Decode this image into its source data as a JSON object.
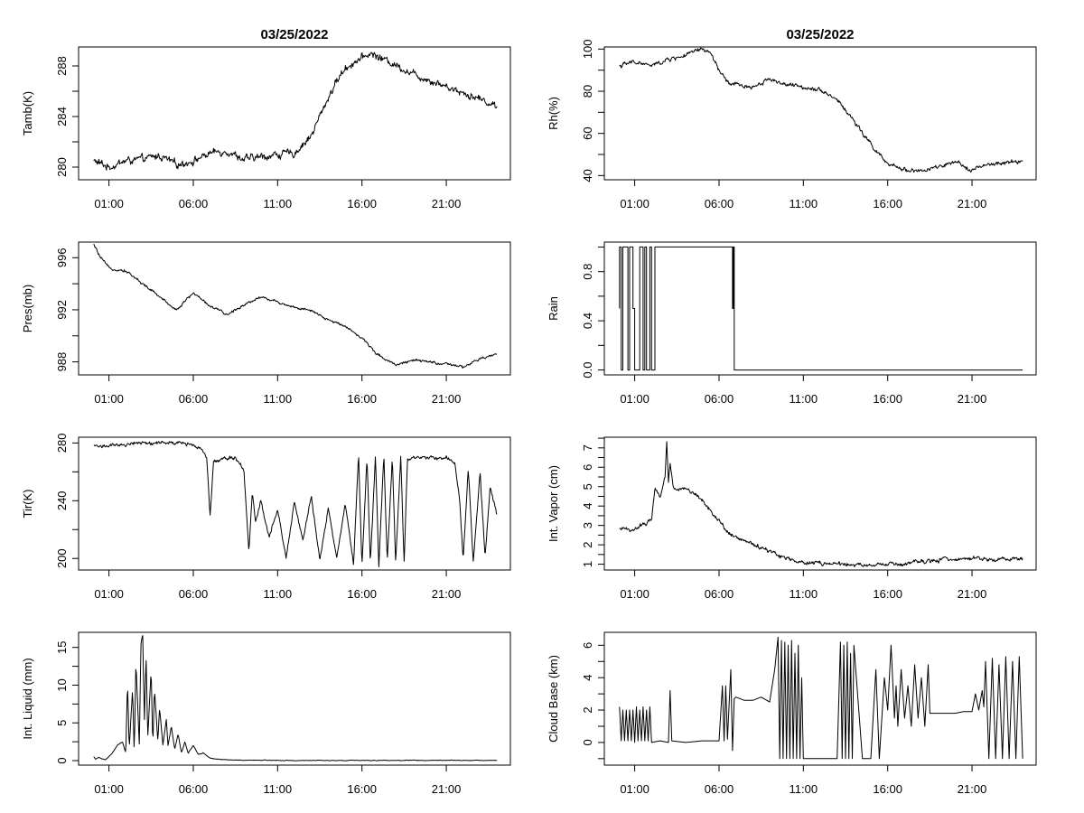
{
  "chart_data": [
    {
      "type": "line",
      "title": "03/25/2022",
      "ylabel": "Tamb(K)",
      "xlim": [
        -0.8,
        24.8
      ],
      "ylim": [
        279,
        289.5
      ],
      "yticks": [
        280,
        284,
        288
      ],
      "xticks": [
        1,
        6,
        11,
        16,
        21
      ],
      "xticklabels": [
        "01:00",
        "06:00",
        "11:00",
        "16:00",
        "21:00"
      ],
      "grid": false,
      "series": [
        {
          "color": "#000000",
          "noise": 0.35,
          "x": [
            0.1,
            1,
            2,
            3,
            4,
            5,
            6,
            7,
            8,
            9,
            10,
            11,
            12,
            13,
            13.5,
            14,
            14.5,
            15,
            15.5,
            16,
            16.5,
            17,
            18,
            19,
            20,
            21,
            22,
            23,
            24
          ],
          "y": [
            280.5,
            280.0,
            280.5,
            280.6,
            280.9,
            280.2,
            280.5,
            281.1,
            281.3,
            280.6,
            280.8,
            281.0,
            281.1,
            282.5,
            284.0,
            285.5,
            286.8,
            287.8,
            288.3,
            288.6,
            289.0,
            288.7,
            288.1,
            287.4,
            286.9,
            286.4,
            285.9,
            285.4,
            284.8
          ]
        }
      ]
    },
    {
      "type": "line",
      "title": "03/25/2022",
      "ylabel": "Rh(%)",
      "xlim": [
        -0.8,
        24.8
      ],
      "ylim": [
        38,
        101
      ],
      "yticks": [
        40,
        60,
        80,
        100
      ],
      "xticks": [
        1,
        6,
        11,
        16,
        21
      ],
      "xticklabels": [
        "01:00",
        "06:00",
        "11:00",
        "16:00",
        "21:00"
      ],
      "grid": false,
      "series": [
        {
          "color": "#000000",
          "noise": 1.2,
          "x": [
            0.1,
            1,
            2,
            3,
            4,
            5,
            5.5,
            6,
            6.5,
            7,
            8,
            9,
            10,
            11,
            12,
            13,
            14,
            14.5,
            15,
            15.5,
            16,
            17,
            18,
            19,
            20,
            21,
            22,
            23,
            24
          ],
          "y": [
            92,
            94,
            92,
            95,
            97,
            100,
            98,
            90,
            84,
            83,
            82,
            86,
            83,
            82,
            81,
            76,
            66,
            60,
            55,
            50,
            45,
            43,
            42,
            44,
            46,
            43,
            45,
            46,
            47
          ]
        }
      ]
    },
    {
      "type": "line",
      "ylabel": "Pres(mb)",
      "xlim": [
        -0.8,
        24.8
      ],
      "ylim": [
        987.0,
        997.2
      ],
      "yticks": [
        988,
        992,
        996
      ],
      "xticks": [
        1,
        6,
        11,
        16,
        21
      ],
      "xticklabels": [
        "01:00",
        "06:00",
        "11:00",
        "16:00",
        "21:00"
      ],
      "grid": false,
      "series": [
        {
          "color": "#000000",
          "noise": 0.12,
          "x": [
            0.1,
            0.5,
            1,
            2,
            3,
            4,
            5,
            6,
            7,
            8,
            9,
            10,
            11,
            12,
            13,
            14,
            15,
            16,
            17,
            18,
            19,
            20,
            21,
            22,
            23,
            24
          ],
          "y": [
            997.0,
            996.0,
            995.2,
            995.0,
            994.0,
            993.0,
            992.0,
            993.3,
            992.3,
            991.6,
            992.4,
            993.0,
            992.6,
            992.2,
            991.9,
            991.2,
            990.8,
            989.8,
            988.5,
            987.8,
            988.1,
            988.0,
            987.8,
            987.6,
            988.2,
            988.6
          ]
        }
      ]
    },
    {
      "type": "step",
      "ylabel": "Rain",
      "xlim": [
        -0.8,
        24.8
      ],
      "ylim": [
        -0.04,
        1.04
      ],
      "yticks": [
        0.0,
        0.4,
        0.8
      ],
      "yticklabels": [
        "0.0",
        "0.4",
        "0.8"
      ],
      "xticks": [
        1,
        6,
        11,
        16,
        21
      ],
      "xticklabels": [
        "01:00",
        "06:00",
        "11:00",
        "16:00",
        "21:00"
      ],
      "grid": false,
      "series": [
        {
          "color": "#000000",
          "x": [
            0.1,
            0.1,
            0.2,
            0.2,
            0.3,
            0.3,
            0.6,
            0.6,
            0.7,
            0.7,
            0.9,
            0.9,
            1.0,
            1.0,
            1.3,
            1.3,
            1.5,
            1.5,
            1.6,
            1.6,
            1.7,
            1.7,
            1.9,
            1.9,
            2.0,
            2.0,
            2.2,
            2.2,
            6.8,
            6.8,
            6.85,
            6.85,
            6.9,
            6.9,
            24.0
          ],
          "y": [
            0.5,
            1,
            1,
            0,
            0,
            1,
            1,
            0,
            0,
            1,
            1,
            0.5,
            0.5,
            0,
            0,
            1,
            1,
            0,
            0,
            1,
            1,
            0,
            0,
            1,
            1,
            0,
            0,
            1,
            1,
            0.5,
            0.5,
            1,
            1,
            0,
            0
          ]
        }
      ]
    },
    {
      "type": "line",
      "ylabel": "Tir(K)",
      "xlim": [
        -0.8,
        24.8
      ],
      "ylim": [
        192,
        284
      ],
      "yticks": [
        200,
        240,
        280
      ],
      "xticks": [
        1,
        6,
        11,
        16,
        21
      ],
      "xticklabels": [
        "01:00",
        "06:00",
        "11:00",
        "16:00",
        "21:00"
      ],
      "grid": false,
      "series": [
        {
          "color": "#000000",
          "noise": 1.5,
          "x": [
            0.1,
            2,
            2.1,
            5,
            6,
            6.5,
            6.8,
            7.0,
            7.2,
            7.5,
            8,
            8.5,
            9,
            9.3,
            9.5,
            9.7,
            10,
            10.5,
            11,
            11.5,
            12,
            12.5,
            13,
            13.5,
            14,
            14.5,
            15,
            15.5,
            15.8,
            16,
            16.3,
            16.5,
            16.8,
            17,
            17.3,
            17.5,
            17.8,
            18,
            18.3,
            18.5,
            18.7,
            19,
            20,
            21,
            21.5,
            21.8,
            22,
            22.3,
            22.6,
            23,
            23.3,
            23.6,
            24
          ],
          "y": [
            278,
            278,
            280,
            280,
            279,
            276,
            270,
            230,
            268,
            268,
            270,
            270,
            262,
            205,
            245,
            225,
            240,
            215,
            235,
            200,
            240,
            212,
            243,
            198,
            235,
            200,
            238,
            196,
            272,
            195,
            270,
            196,
            272,
            195,
            272,
            197,
            270,
            196,
            271,
            197,
            269,
            270,
            270,
            270,
            266,
            240,
            200,
            262,
            198,
            260,
            200,
            250,
            230
          ]
        }
      ]
    },
    {
      "type": "line",
      "ylabel": "Int. Vapor (cm)",
      "xlim": [
        -0.8,
        24.8
      ],
      "ylim": [
        0.7,
        7.55
      ],
      "yticks": [
        1,
        2,
        3,
        4,
        5,
        6,
        7
      ],
      "xticks": [
        1,
        6,
        11,
        16,
        21
      ],
      "xticklabels": [
        "01:00",
        "06:00",
        "11:00",
        "16:00",
        "21:00"
      ],
      "grid": false,
      "series": [
        {
          "color": "#000000",
          "noise": 0.12,
          "x": [
            0.1,
            1,
            2,
            2.2,
            2.5,
            2.8,
            2.9,
            3.0,
            3.1,
            3.3,
            3.6,
            4,
            4.5,
            5,
            5.5,
            6,
            6.5,
            7,
            8,
            9,
            10,
            11,
            12,
            13,
            14,
            15,
            16,
            17,
            18,
            19,
            20,
            21,
            22,
            23,
            24
          ],
          "y": [
            2.8,
            2.8,
            3.3,
            5.0,
            4.4,
            5.6,
            7.3,
            5.2,
            6.2,
            5.0,
            4.8,
            4.9,
            4.7,
            4.3,
            3.8,
            3.2,
            2.7,
            2.4,
            2.0,
            1.7,
            1.3,
            1.1,
            1.05,
            1.0,
            0.95,
            0.95,
            0.97,
            1.0,
            1.1,
            1.2,
            1.3,
            1.3,
            1.25,
            1.25,
            1.3
          ]
        }
      ]
    },
    {
      "type": "line",
      "ylabel": "Int. Liquid (mm)",
      "xlim": [
        -0.8,
        24.8
      ],
      "ylim": [
        -0.6,
        17.0
      ],
      "yticks": [
        0,
        5,
        10,
        15
      ],
      "xticks": [
        1,
        6,
        11,
        16,
        21
      ],
      "xticklabels": [
        "01:00",
        "06:00",
        "11:00",
        "16:00",
        "21:00"
      ],
      "grid": false,
      "series": [
        {
          "color": "#000000",
          "noise": 0.05,
          "x": [
            0.1,
            0.2,
            0.4,
            0.8,
            1.2,
            1.5,
            1.8,
            2.0,
            2.1,
            2.2,
            2.4,
            2.5,
            2.6,
            2.8,
            2.9,
            3.0,
            3.1,
            3.2,
            3.3,
            3.5,
            3.6,
            3.7,
            3.9,
            4.0,
            4.2,
            4.4,
            4.5,
            4.7,
            4.9,
            5.1,
            5.3,
            5.5,
            5.7,
            6.0,
            6.3,
            6.6,
            7.0,
            7.5,
            8,
            9,
            10,
            12,
            15,
            18,
            21,
            24
          ],
          "y": [
            0.5,
            0.2,
            0.4,
            0.1,
            1.0,
            2.0,
            2.5,
            1.0,
            10.5,
            1.5,
            9.5,
            1.0,
            13.0,
            2.0,
            15.5,
            16.8,
            5.0,
            14.0,
            3.0,
            12.0,
            2.0,
            9.5,
            2.5,
            7.0,
            2.0,
            5.5,
            2.0,
            4.5,
            1.5,
            3.5,
            1.0,
            2.5,
            1.0,
            2.0,
            0.8,
            1.0,
            0.3,
            0.2,
            0.1,
            0.05,
            0.05,
            0.02,
            0.02,
            0.02,
            0.05,
            0.02
          ]
        }
      ]
    },
    {
      "type": "line",
      "ylabel": "Cloud Base (km)",
      "xlim": [
        -0.8,
        24.8
      ],
      "ylim": [
        -1.4,
        6.8
      ],
      "yticks": [
        0,
        2,
        4,
        6
      ],
      "xticks": [
        1,
        6,
        11,
        16,
        21
      ],
      "xticklabels": [
        "01:00",
        "06:00",
        "11:00",
        "16:00",
        "21:00"
      ],
      "grid": false,
      "series": [
        {
          "color": "#000000",
          "x": [
            0.1,
            0.2,
            0.3,
            0.4,
            0.5,
            0.6,
            0.7,
            0.8,
            0.9,
            1.0,
            1.1,
            1.2,
            1.3,
            1.4,
            1.5,
            1.6,
            1.7,
            1.8,
            1.9,
            2.0,
            2.5,
            3.0,
            3.1,
            3.2,
            4.0,
            5.0,
            6.0,
            6.2,
            6.3,
            6.4,
            6.5,
            6.7,
            6.8,
            6.9,
            7.0,
            7.5,
            8.0,
            8.5,
            9.0,
            9.3,
            9.5,
            9.6,
            9.7,
            9.8,
            9.9,
            10.0,
            10.1,
            10.2,
            10.3,
            10.4,
            10.5,
            10.6,
            10.7,
            10.8,
            10.9,
            11.0,
            11.5,
            12.0,
            12.5,
            13.0,
            13.2,
            13.3,
            13.4,
            13.5,
            13.6,
            13.7,
            13.8,
            13.9,
            14.0,
            14.5,
            15.0,
            15.3,
            15.5,
            15.8,
            16.0,
            16.2,
            16.4,
            16.5,
            16.6,
            16.8,
            17.0,
            17.2,
            17.4,
            17.6,
            17.8,
            18.0,
            18.2,
            18.4,
            18.5,
            19.0,
            20.0,
            20.5,
            21.0,
            21.2,
            21.4,
            21.6,
            21.7,
            21.8,
            22.0,
            22.2,
            22.4,
            22.6,
            22.8,
            23.0,
            23.2,
            23.4,
            23.6,
            23.8,
            24.0
          ],
          "y": [
            2.2,
            0.1,
            2.0,
            0.1,
            2.0,
            0.1,
            2.0,
            0.1,
            2.0,
            0.0,
            2.2,
            0.1,
            2.0,
            0.1,
            2.2,
            0.1,
            2.0,
            0.1,
            2.2,
            0.0,
            0.1,
            0.0,
            3.2,
            0.1,
            0.0,
            0.1,
            0.1,
            3.5,
            0.1,
            3.5,
            0.2,
            4.5,
            -0.5,
            2.7,
            2.8,
            2.6,
            2.6,
            2.8,
            2.5,
            4.5,
            6.5,
            -1.0,
            6.3,
            -1.0,
            6.2,
            -1.0,
            6.0,
            -1.0,
            6.3,
            -1.0,
            5.5,
            -1.0,
            6.0,
            -1.0,
            4.0,
            -1.0,
            -1.0,
            -1.0,
            -1.0,
            -1.0,
            6.2,
            -1.0,
            6.0,
            -1.0,
            6.2,
            -1.0,
            5.5,
            -1.0,
            6.0,
            -1.0,
            -1.0,
            4.5,
            -1.0,
            4.0,
            2.0,
            6.0,
            1.5,
            3.5,
            1.0,
            4.5,
            1.5,
            3.5,
            1.0,
            4.8,
            1.5,
            4.0,
            1.0,
            4.8,
            1.8,
            1.8,
            1.8,
            1.9,
            1.9,
            3.0,
            2.0,
            3.2,
            2.2,
            5.0,
            -1.0,
            5.2,
            -1.0,
            4.8,
            -1.0,
            5.3,
            -1.0,
            5.0,
            -1.0,
            5.3,
            -1.0
          ]
        }
      ]
    }
  ]
}
